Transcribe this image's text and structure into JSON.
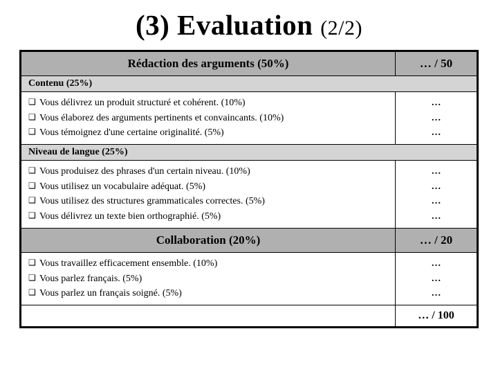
{
  "title_main": "(3) Evaluation",
  "title_sub": "(2/2)",
  "colors": {
    "section_bg": "#b0b0b0",
    "subsection_bg": "#d4d4d4",
    "border": "#000000",
    "background": "#ffffff"
  },
  "sections": [
    {
      "header": "Rédaction des arguments (50%)",
      "score_out_of": "… / 50",
      "subsections": [
        {
          "label": "Contenu  (25%)",
          "criteria": [
            {
              "text": "Vous délivrez un produit structuré et cohérent. (10%)",
              "score": "…"
            },
            {
              "text": "Vous élaborez des arguments pertinents et convaincants. (10%)",
              "score": "…"
            },
            {
              "text": "Vous témoignez d'une certaine originalité. (5%)",
              "score": "…"
            }
          ]
        },
        {
          "label": "Niveau de langue (25%)",
          "criteria": [
            {
              "text": "Vous produisez des phrases d'un certain niveau. (10%)",
              "score": "…"
            },
            {
              "text": "Vous utilisez un vocabulaire adéquat. (5%)",
              "score": "…"
            },
            {
              "text": "Vous utilisez des structures grammaticales correctes. (5%)",
              "score": "…"
            },
            {
              "text": "Vous délivrez un texte bien orthographié. (5%)",
              "score": "…"
            }
          ]
        }
      ]
    },
    {
      "header": "Collaboration  (20%)",
      "score_out_of": "… / 20",
      "subsections": [
        {
          "label": null,
          "criteria": [
            {
              "text": "Vous travaillez efficacement ensemble. (10%)",
              "score": "…"
            },
            {
              "text": "Vous parlez français. (5%)",
              "score": "…"
            },
            {
              "text": "Vous parlez un français soigné. (5%)",
              "score": "…"
            }
          ]
        }
      ]
    }
  ],
  "total_label": "",
  "total_score": "… / 100",
  "checkbox_glyph": "❑"
}
